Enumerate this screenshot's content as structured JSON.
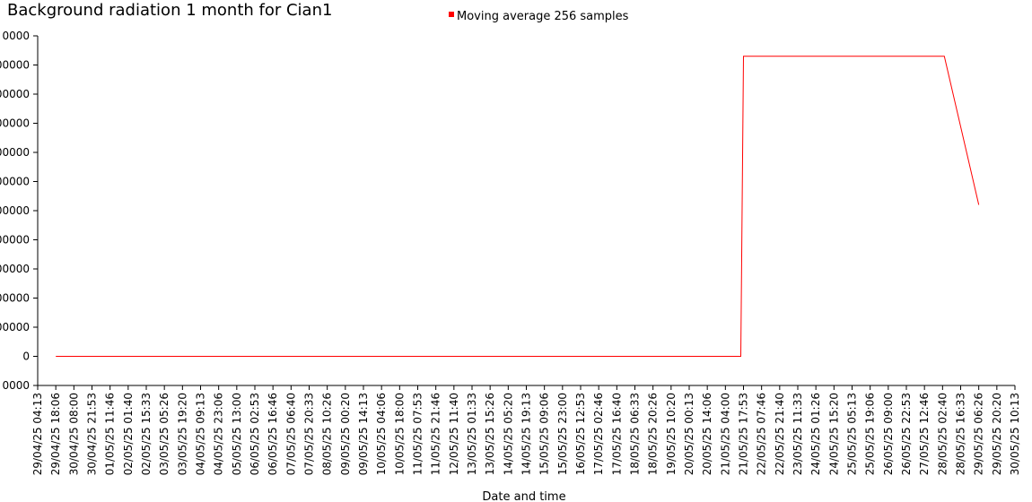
{
  "chart_data": {
    "type": "line",
    "title": "Background radiation 1 month for Cian1",
    "xlabel": "Date and time",
    "ylabel": "",
    "legend": "top-center",
    "grid": false,
    "y_tick_labels": [
      "0000",
      "00000",
      "00000",
      "00000",
      "00000",
      "00000",
      "00000",
      "00000",
      "00000",
      "00000",
      "00000",
      "0",
      "0000"
    ],
    "x_tick_labels": [
      "29/04/25 04:13",
      "29/04/25 18:06",
      "30/04/25 08:00",
      "30/04/25 21:53",
      "01/05/25 11:46",
      "02/05/25 01:40",
      "02/05/25 15:33",
      "03/05/25 05:26",
      "03/05/25 19:20",
      "04/05/25 09:13",
      "04/05/25 23:06",
      "05/05/25 13:00",
      "06/05/25 02:53",
      "06/05/25 16:46",
      "07/05/25 06:40",
      "07/05/25 20:33",
      "08/05/25 10:26",
      "09/05/25 00:20",
      "09/05/25 14:13",
      "10/05/25 04:06",
      "10/05/25 18:00",
      "11/05/25 07:53",
      "11/05/25 21:46",
      "12/05/25 11:40",
      "13/05/25 01:33",
      "13/05/25 15:26",
      "14/05/25 05:20",
      "14/05/25 19:13",
      "15/05/25 09:06",
      "15/05/25 23:00",
      "16/05/25 12:53",
      "17/05/25 02:46",
      "17/05/25 16:40",
      "18/05/25 06:33",
      "18/05/25 20:26",
      "19/05/25 10:20",
      "20/05/25 00:13",
      "20/05/25 14:06",
      "21/05/25 04:00",
      "21/05/25 17:53",
      "22/05/25 07:46",
      "22/05/25 21:40",
      "23/05/25 11:33",
      "24/05/25 01:26",
      "24/05/25 15:20",
      "25/05/25 05:13",
      "25/05/25 19:06",
      "26/05/25 09:00",
      "26/05/25 22:53",
      "27/05/25 12:46",
      "28/05/25 02:40",
      "28/05/25 16:33",
      "29/05/25 06:26",
      "29/05/25 20:20",
      "30/05/25 10:13"
    ],
    "x_range": [
      0,
      54
    ],
    "y_range": [
      -1,
      11
    ],
    "series": [
      {
        "name": "Moving average 256 samples",
        "color": "#ff0000",
        "x": [
          1.0,
          10.0,
          20.0,
          30.0,
          38.6,
          38.85,
          39.0,
          40.0,
          45.0,
          50.0,
          50.1,
          52.0
        ],
        "y": [
          0.0,
          0.0,
          0.0,
          0.0,
          0.0,
          0.0,
          10.3,
          10.3,
          10.3,
          10.3,
          10.3,
          5.2
        ]
      }
    ]
  }
}
